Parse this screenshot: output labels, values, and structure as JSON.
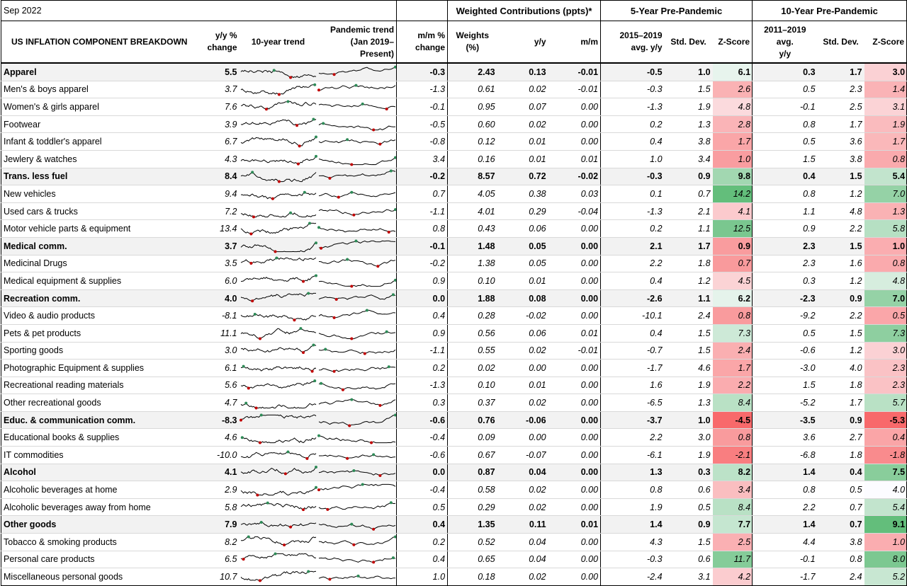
{
  "date": "Sep 2022",
  "groups": {
    "weighted": "Weighted Contributions (ppts)*",
    "five_year": "5-Year Pre-Pandemic",
    "ten_year": "10-Year Pre-Pandemic"
  },
  "headers": {
    "component": "US INFLATION COMPONENT BREAKDOWN",
    "yy": "y/y %\nchange",
    "trend10": "10-year trend",
    "pandemic": "Pandemic trend\n(Jan 2019–Present)",
    "mm": "m/m %\nchange",
    "weights": "Weights\n(%)",
    "c_yy": "y/y",
    "c_mm": "m/m",
    "avg5": "2015–2019\navg. y/y",
    "sd5": "Std. Dev.",
    "z5": "Z-Score",
    "avg10": "2011–2019 avg.\ny/y",
    "sd10": "Std. Dev.",
    "z10": "Z-Score"
  },
  "colors": {
    "pos_strong": "#63be7b",
    "neg_strong": "#f8696b",
    "neutral": "#fcfcff",
    "spark_line": "#000000",
    "spark_low": "#c00000",
    "spark_high": "#2e8b57"
  },
  "rows": [
    {
      "name": "Apparel",
      "cat": true,
      "yy": "5.5",
      "mm": "-0.3",
      "w": "2.43",
      "cyy": "0.13",
      "cmm": "-0.01",
      "a5": "-0.5",
      "s5": "1.0",
      "z5": "6.1",
      "a10": "0.3",
      "s10": "1.7",
      "z10": "3.0"
    },
    {
      "name": "Men's & boys apparel",
      "cat": false,
      "yy": "3.7",
      "mm": "-1.3",
      "w": "0.61",
      "cyy": "0.02",
      "cmm": "-0.01",
      "a5": "-0.3",
      "s5": "1.5",
      "z5": "2.6",
      "a10": "0.5",
      "s10": "2.3",
      "z10": "1.4"
    },
    {
      "name": "Women's & girls apparel",
      "cat": false,
      "yy": "7.6",
      "mm": "-0.1",
      "w": "0.95",
      "cyy": "0.07",
      "cmm": "0.00",
      "a5": "-1.3",
      "s5": "1.9",
      "z5": "4.8",
      "a10": "-0.1",
      "s10": "2.5",
      "z10": "3.1"
    },
    {
      "name": "Footwear",
      "cat": false,
      "yy": "3.9",
      "mm": "-0.5",
      "w": "0.60",
      "cyy": "0.02",
      "cmm": "0.00",
      "a5": "0.2",
      "s5": "1.3",
      "z5": "2.8",
      "a10": "0.8",
      "s10": "1.7",
      "z10": "1.9"
    },
    {
      "name": "Infant & toddler's apparel",
      "cat": false,
      "yy": "6.7",
      "mm": "-0.8",
      "w": "0.12",
      "cyy": "0.01",
      "cmm": "0.00",
      "a5": "0.4",
      "s5": "3.8",
      "z5": "1.7",
      "a10": "0.5",
      "s10": "3.6",
      "z10": "1.7"
    },
    {
      "name": "Jewlery & watches",
      "cat": false,
      "yy": "4.3",
      "mm": "3.4",
      "w": "0.16",
      "cyy": "0.01",
      "cmm": "0.01",
      "a5": "1.0",
      "s5": "3.4",
      "z5": "1.0",
      "a10": "1.5",
      "s10": "3.8",
      "z10": "0.8"
    },
    {
      "name": "Trans. less fuel",
      "cat": true,
      "yy": "8.4",
      "mm": "-0.2",
      "w": "8.57",
      "cyy": "0.72",
      "cmm": "-0.02",
      "a5": "-0.3",
      "s5": "0.9",
      "z5": "9.8",
      "a10": "0.4",
      "s10": "1.5",
      "z10": "5.4"
    },
    {
      "name": "New vehicles",
      "cat": false,
      "yy": "9.4",
      "mm": "0.7",
      "w": "4.05",
      "cyy": "0.38",
      "cmm": "0.03",
      "a5": "0.1",
      "s5": "0.7",
      "z5": "14.2",
      "a10": "0.8",
      "s10": "1.2",
      "z10": "7.0"
    },
    {
      "name": "Used cars & trucks",
      "cat": false,
      "yy": "7.2",
      "mm": "-1.1",
      "w": "4.01",
      "cyy": "0.29",
      "cmm": "-0.04",
      "a5": "-1.3",
      "s5": "2.1",
      "z5": "4.1",
      "a10": "1.1",
      "s10": "4.8",
      "z10": "1.3"
    },
    {
      "name": "Motor vehicle parts & equipment",
      "cat": false,
      "yy": "13.4",
      "mm": "0.8",
      "w": "0.43",
      "cyy": "0.06",
      "cmm": "0.00",
      "a5": "0.2",
      "s5": "1.1",
      "z5": "12.5",
      "a10": "0.9",
      "s10": "2.2",
      "z10": "5.8"
    },
    {
      "name": "Medical comm.",
      "cat": true,
      "yy": "3.7",
      "mm": "-0.1",
      "w": "1.48",
      "cyy": "0.05",
      "cmm": "0.00",
      "a5": "2.1",
      "s5": "1.7",
      "z5": "0.9",
      "a10": "2.3",
      "s10": "1.5",
      "z10": "1.0"
    },
    {
      "name": "Medicinal Drugs",
      "cat": false,
      "yy": "3.5",
      "mm": "-0.2",
      "w": "1.38",
      "cyy": "0.05",
      "cmm": "0.00",
      "a5": "2.2",
      "s5": "1.8",
      "z5": "0.7",
      "a10": "2.3",
      "s10": "1.6",
      "z10": "0.8"
    },
    {
      "name": "Medical equipment & supplies",
      "cat": false,
      "yy": "6.0",
      "mm": "0.9",
      "w": "0.10",
      "cyy": "0.01",
      "cmm": "0.00",
      "a5": "0.4",
      "s5": "1.2",
      "z5": "4.5",
      "a10": "0.3",
      "s10": "1.2",
      "z10": "4.8"
    },
    {
      "name": "Recreation comm.",
      "cat": true,
      "yy": "4.0",
      "mm": "0.0",
      "w": "1.88",
      "cyy": "0.08",
      "cmm": "0.00",
      "a5": "-2.6",
      "s5": "1.1",
      "z5": "6.2",
      "a10": "-2.3",
      "s10": "0.9",
      "z10": "7.0"
    },
    {
      "name": "Video & audio products",
      "cat": false,
      "yy": "-8.1",
      "mm": "0.4",
      "w": "0.28",
      "cyy": "-0.02",
      "cmm": "0.00",
      "a5": "-10.1",
      "s5": "2.4",
      "z5": "0.8",
      "a10": "-9.2",
      "s10": "2.2",
      "z10": "0.5"
    },
    {
      "name": "Pets & pet products",
      "cat": false,
      "yy": "11.1",
      "mm": "0.9",
      "w": "0.56",
      "cyy": "0.06",
      "cmm": "0.01",
      "a5": "0.4",
      "s5": "1.5",
      "z5": "7.3",
      "a10": "0.5",
      "s10": "1.5",
      "z10": "7.3"
    },
    {
      "name": "Sporting goods",
      "cat": false,
      "yy": "3.0",
      "mm": "-1.1",
      "w": "0.55",
      "cyy": "0.02",
      "cmm": "-0.01",
      "a5": "-0.7",
      "s5": "1.5",
      "z5": "2.4",
      "a10": "-0.6",
      "s10": "1.2",
      "z10": "3.0"
    },
    {
      "name": "Photographic Equipment & supplies",
      "cat": false,
      "yy": "6.1",
      "mm": "0.2",
      "w": "0.02",
      "cyy": "0.00",
      "cmm": "0.00",
      "a5": "-1.7",
      "s5": "4.6",
      "z5": "1.7",
      "a10": "-3.0",
      "s10": "4.0",
      "z10": "2.3"
    },
    {
      "name": "Recreational reading materials",
      "cat": false,
      "yy": "5.6",
      "mm": "-1.3",
      "w": "0.10",
      "cyy": "0.01",
      "cmm": "0.00",
      "a5": "1.6",
      "s5": "1.9",
      "z5": "2.2",
      "a10": "1.5",
      "s10": "1.8",
      "z10": "2.3"
    },
    {
      "name": "Other recreational goods",
      "cat": false,
      "yy": "4.7",
      "mm": "0.3",
      "w": "0.37",
      "cyy": "0.02",
      "cmm": "0.00",
      "a5": "-6.5",
      "s5": "1.3",
      "z5": "8.4",
      "a10": "-5.2",
      "s10": "1.7",
      "z10": "5.7"
    },
    {
      "name": "Educ. & communication comm.",
      "cat": true,
      "yy": "-8.3",
      "mm": "-0.6",
      "w": "0.76",
      "cyy": "-0.06",
      "cmm": "0.00",
      "a5": "-3.7",
      "s5": "1.0",
      "z5": "-4.5",
      "a10": "-3.5",
      "s10": "0.9",
      "z10": "-5.3"
    },
    {
      "name": "Educational books & supplies",
      "cat": false,
      "yy": "4.6",
      "mm": "-0.4",
      "w": "0.09",
      "cyy": "0.00",
      "cmm": "0.00",
      "a5": "2.2",
      "s5": "3.0",
      "z5": "0.8",
      "a10": "3.6",
      "s10": "2.7",
      "z10": "0.4"
    },
    {
      "name": "IT commodities",
      "cat": false,
      "yy": "-10.0",
      "mm": "-0.6",
      "w": "0.67",
      "cyy": "-0.07",
      "cmm": "0.00",
      "a5": "-6.1",
      "s5": "1.9",
      "z5": "-2.1",
      "a10": "-6.8",
      "s10": "1.8",
      "z10": "-1.8"
    },
    {
      "name": "Alcohol",
      "cat": true,
      "yy": "4.1",
      "mm": "0.0",
      "w": "0.87",
      "cyy": "0.04",
      "cmm": "0.00",
      "a5": "1.3",
      "s5": "0.3",
      "z5": "8.2",
      "a10": "1.4",
      "s10": "0.4",
      "z10": "7.5"
    },
    {
      "name": "Alcoholic beverages at home",
      "cat": false,
      "yy": "2.9",
      "mm": "-0.4",
      "w": "0.58",
      "cyy": "0.02",
      "cmm": "0.00",
      "a5": "0.8",
      "s5": "0.6",
      "z5": "3.4",
      "a10": "0.8",
      "s10": "0.5",
      "z10": "4.0"
    },
    {
      "name": "Alcoholic beverages away from home",
      "cat": false,
      "yy": "5.8",
      "mm": "0.5",
      "w": "0.29",
      "cyy": "0.02",
      "cmm": "0.00",
      "a5": "1.9",
      "s5": "0.5",
      "z5": "8.4",
      "a10": "2.2",
      "s10": "0.7",
      "z10": "5.4"
    },
    {
      "name": "Other goods",
      "cat": true,
      "yy": "7.9",
      "mm": "0.4",
      "w": "1.35",
      "cyy": "0.11",
      "cmm": "0.01",
      "a5": "1.4",
      "s5": "0.9",
      "z5": "7.7",
      "a10": "1.4",
      "s10": "0.7",
      "z10": "9.1"
    },
    {
      "name": "Tobacco & smoking products",
      "cat": false,
      "yy": "8.2",
      "mm": "0.2",
      "w": "0.52",
      "cyy": "0.04",
      "cmm": "0.00",
      "a5": "4.3",
      "s5": "1.5",
      "z5": "2.5",
      "a10": "4.4",
      "s10": "3.8",
      "z10": "1.0"
    },
    {
      "name": "Personal care products",
      "cat": false,
      "yy": "6.5",
      "mm": "0.4",
      "w": "0.65",
      "cyy": "0.04",
      "cmm": "0.00",
      "a5": "-0.3",
      "s5": "0.6",
      "z5": "11.7",
      "a10": "-0.1",
      "s10": "0.8",
      "z10": "8.0"
    },
    {
      "name": "Miscellaneous personal goods",
      "cat": false,
      "yy": "10.7",
      "mm": "1.0",
      "w": "0.18",
      "cyy": "0.02",
      "cmm": "0.00",
      "a5": "-2.4",
      "s5": "3.1",
      "z5": "4.2",
      "a10": "-1.7",
      "s10": "2.4",
      "z10": "5.2"
    }
  ]
}
